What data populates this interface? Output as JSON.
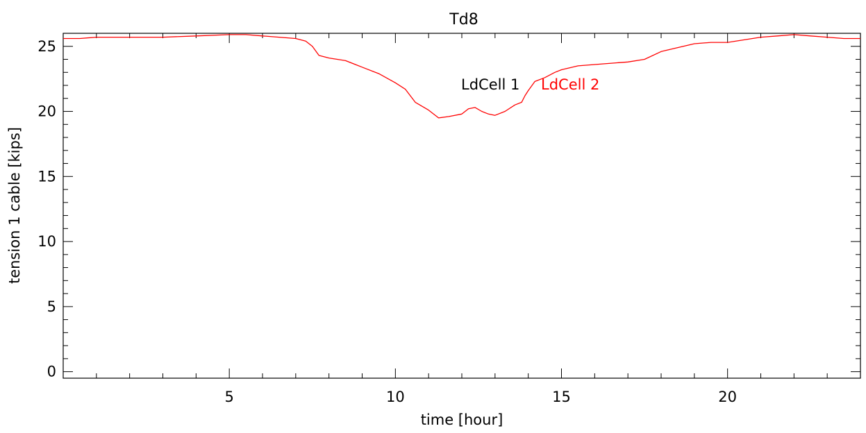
{
  "chart_data": {
    "type": "line",
    "title": "Td8",
    "xlabel": "time [hour]",
    "ylabel": "tension 1 cable [kips]",
    "xlim": [
      0,
      24
    ],
    "ylim": [
      -0.5,
      26
    ],
    "xticks": [
      5,
      10,
      15,
      20
    ],
    "xtick_labels": [
      "5",
      "10",
      "15",
      "20"
    ],
    "yticks": [
      0,
      5,
      10,
      15,
      20,
      25
    ],
    "ytick_labels": [
      "0",
      "5",
      "10",
      "15",
      "20",
      "25"
    ],
    "grid": false,
    "legend_placement": "center-top",
    "series": [
      {
        "name": "LdCell 1",
        "color": "#000000",
        "x": [],
        "y": []
      },
      {
        "name": "LdCell 2",
        "color": "#ff0000",
        "x": [
          0.0,
          0.5,
          1.0,
          2.0,
          3.0,
          4.0,
          5.0,
          5.5,
          6.0,
          6.5,
          7.0,
          7.3,
          7.5,
          7.7,
          8.0,
          8.5,
          9.0,
          9.5,
          10.0,
          10.3,
          10.6,
          11.0,
          11.3,
          11.6,
          12.0,
          12.2,
          12.4,
          12.6,
          12.8,
          13.0,
          13.3,
          13.6,
          13.8,
          13.9,
          14.0,
          14.2,
          14.5,
          14.8,
          15.0,
          15.5,
          16.0,
          16.5,
          17.0,
          17.5,
          18.0,
          18.5,
          19.0,
          19.5,
          20.0,
          20.5,
          21.0,
          21.5,
          22.0,
          22.5,
          23.0,
          23.5,
          24.0
        ],
        "y": [
          25.6,
          25.6,
          25.7,
          25.7,
          25.7,
          25.8,
          25.9,
          25.9,
          25.8,
          25.7,
          25.6,
          25.4,
          25.0,
          24.3,
          24.1,
          23.9,
          23.4,
          22.9,
          22.2,
          21.7,
          20.7,
          20.1,
          19.5,
          19.6,
          19.8,
          20.2,
          20.3,
          20.0,
          19.8,
          19.7,
          20.0,
          20.5,
          20.7,
          21.2,
          21.6,
          22.3,
          22.6,
          23.0,
          23.2,
          23.5,
          23.6,
          23.7,
          23.8,
          24.0,
          24.6,
          24.9,
          25.2,
          25.3,
          25.3,
          25.5,
          25.7,
          25.8,
          25.9,
          25.8,
          25.7,
          25.6,
          25.6
        ]
      }
    ]
  }
}
